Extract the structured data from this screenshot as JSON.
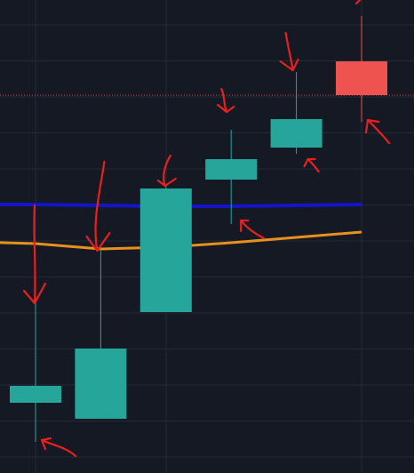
{
  "colors": {
    "background": "#151924",
    "grid": "#242a36",
    "up": "#26a69a",
    "down": "#ef5350",
    "ma_fast": "#1414c8",
    "ma_slow": "#e8901e",
    "price_line": "#ef5350",
    "annotation": "#e8201e"
  },
  "chart_data": {
    "type": "candlestick",
    "title": "",
    "xlabel": "",
    "ylabel": "",
    "grid": true,
    "x": [
      1,
      2,
      3,
      4,
      5,
      6
    ],
    "ylim": [
      0,
      532
    ],
    "candles": [
      {
        "x": 1,
        "open": 79,
        "close": 98,
        "high": 197,
        "low": 35
      },
      {
        "x": 2,
        "open": 61,
        "close": 140,
        "high": 254,
        "low": 61
      },
      {
        "x": 3,
        "open": 181,
        "close": 320,
        "high": 323,
        "low": 181
      },
      {
        "x": 4,
        "open": 330,
        "close": 353,
        "high": 386,
        "low": 280
      },
      {
        "x": 5,
        "open": 366,
        "close": 398,
        "high": 451,
        "low": 359
      },
      {
        "x": 6,
        "open": 463,
        "close": 425,
        "high": 514,
        "low": 395
      }
    ],
    "series": [
      {
        "type": "line",
        "values": [
          302,
          301,
          300,
          300,
          301,
          302
        ]
      },
      {
        "type": "line",
        "values": [
          258,
          252,
          254,
          259,
          265,
          271
        ]
      }
    ],
    "price_line": 425,
    "annotations": [
      {
        "type": "arrow",
        "candle": 1,
        "points_to": "high"
      },
      {
        "type": "arrow",
        "candle": 1,
        "points_to": "low"
      },
      {
        "type": "arrow",
        "candle": 2,
        "points_to": "high"
      },
      {
        "type": "arrow",
        "candle": 3,
        "points_to": "high"
      },
      {
        "type": "arrow",
        "candle": 4,
        "points_to": "high"
      },
      {
        "type": "arrow",
        "candle": 4,
        "points_to": "low"
      },
      {
        "type": "arrow",
        "candle": 5,
        "points_to": "high"
      },
      {
        "type": "arrow",
        "candle": 5,
        "points_to": "low"
      },
      {
        "type": "arrow",
        "candle": 6,
        "points_to": "high"
      },
      {
        "type": "arrow",
        "candle": 6,
        "points_to": "low"
      }
    ]
  }
}
